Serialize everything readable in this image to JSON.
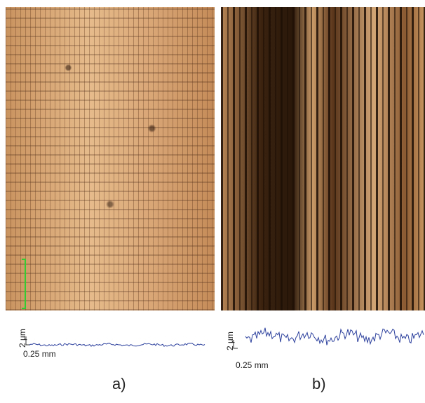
{
  "panels": [
    {
      "label": "a)",
      "profile": {
        "height_scale": "2 µm",
        "length_scale": "0.25 mm"
      }
    },
    {
      "label": "b)",
      "profile": {
        "height_scale": "2 µm",
        "length_scale": "0.25 mm"
      }
    }
  ]
}
